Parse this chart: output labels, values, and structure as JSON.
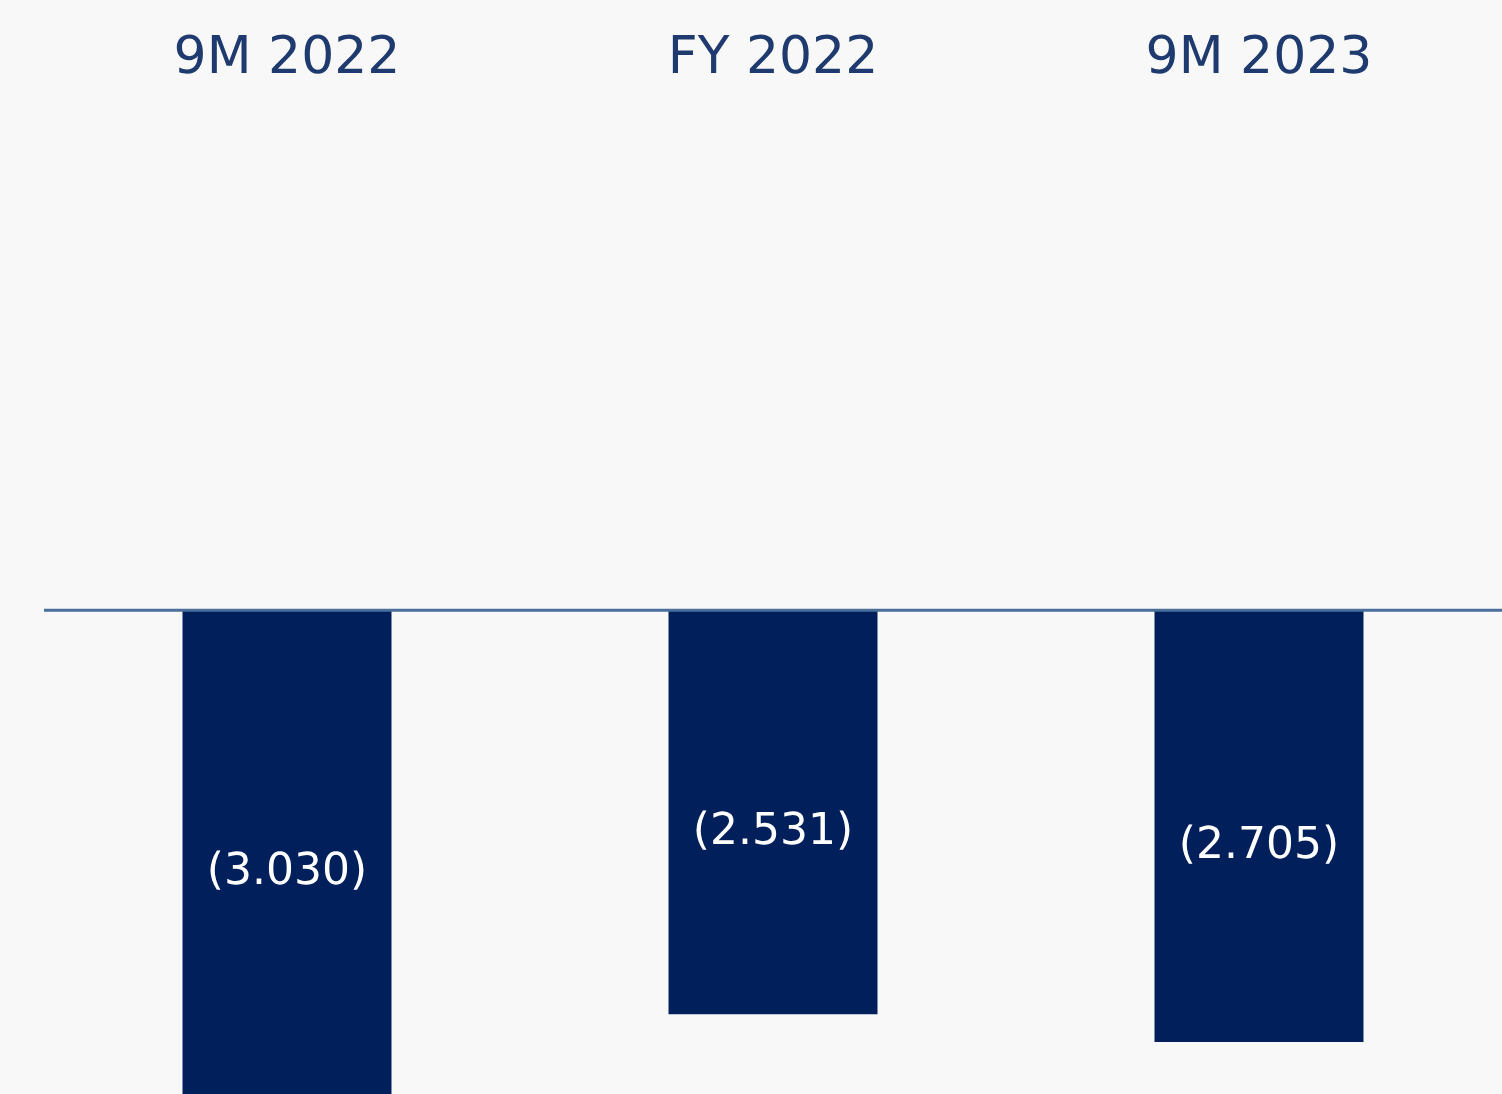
{
  "chart_data": {
    "type": "bar",
    "categories": [
      "9M 2022",
      "FY 2022",
      "9M 2023"
    ],
    "values": [
      -3.03,
      -2.531,
      -2.705
    ],
    "value_labels": [
      "(3.030)",
      "(2.531)",
      "(2.705)"
    ],
    "color": "#001f5b",
    "ref_lines": [
      {
        "axis": "y",
        "value": 0,
        "color": "#4a6f9a"
      }
    ],
    "grid": false,
    "legend": false
  }
}
